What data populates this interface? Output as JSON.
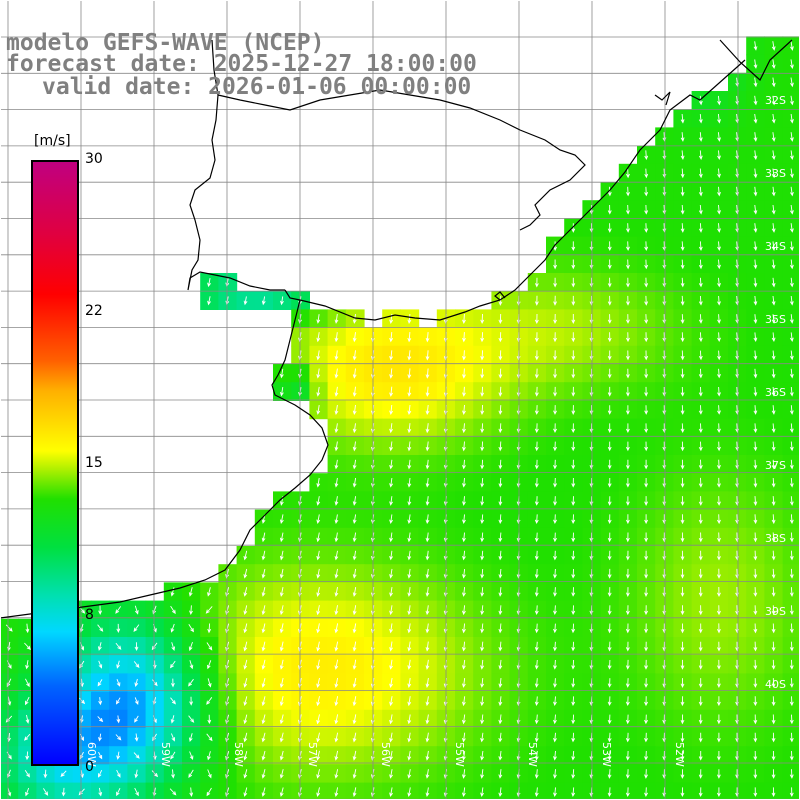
{
  "title": {
    "line1": "modelo GEFS-WAVE (NCEP)",
    "line2": "forecast date: 2025-12-27 18:00:00",
    "line3": "valid date: 2026-01-06 00:00:00"
  },
  "colorbar": {
    "unit": "[m/s]",
    "ticks": [
      {
        "label": "30",
        "value": 30
      },
      {
        "label": "22",
        "value": 22
      },
      {
        "label": "15",
        "value": 15
      },
      {
        "label": "8",
        "value": 8
      },
      {
        "label": "0",
        "value": 0
      }
    ]
  },
  "map": {
    "lat_labels": [
      "32S",
      "33S",
      "34S",
      "35S",
      "36S",
      "37S",
      "38S",
      "39S",
      "40S"
    ],
    "lon_labels": [
      "60W",
      "59W",
      "58W",
      "57W",
      "56W",
      "55W",
      "54W",
      "53W",
      "52W"
    ],
    "land_color": "#ffffff",
    "grid_color": "#888888",
    "arrow_color": "#ffffff",
    "coast_color": "#000000"
  }
}
